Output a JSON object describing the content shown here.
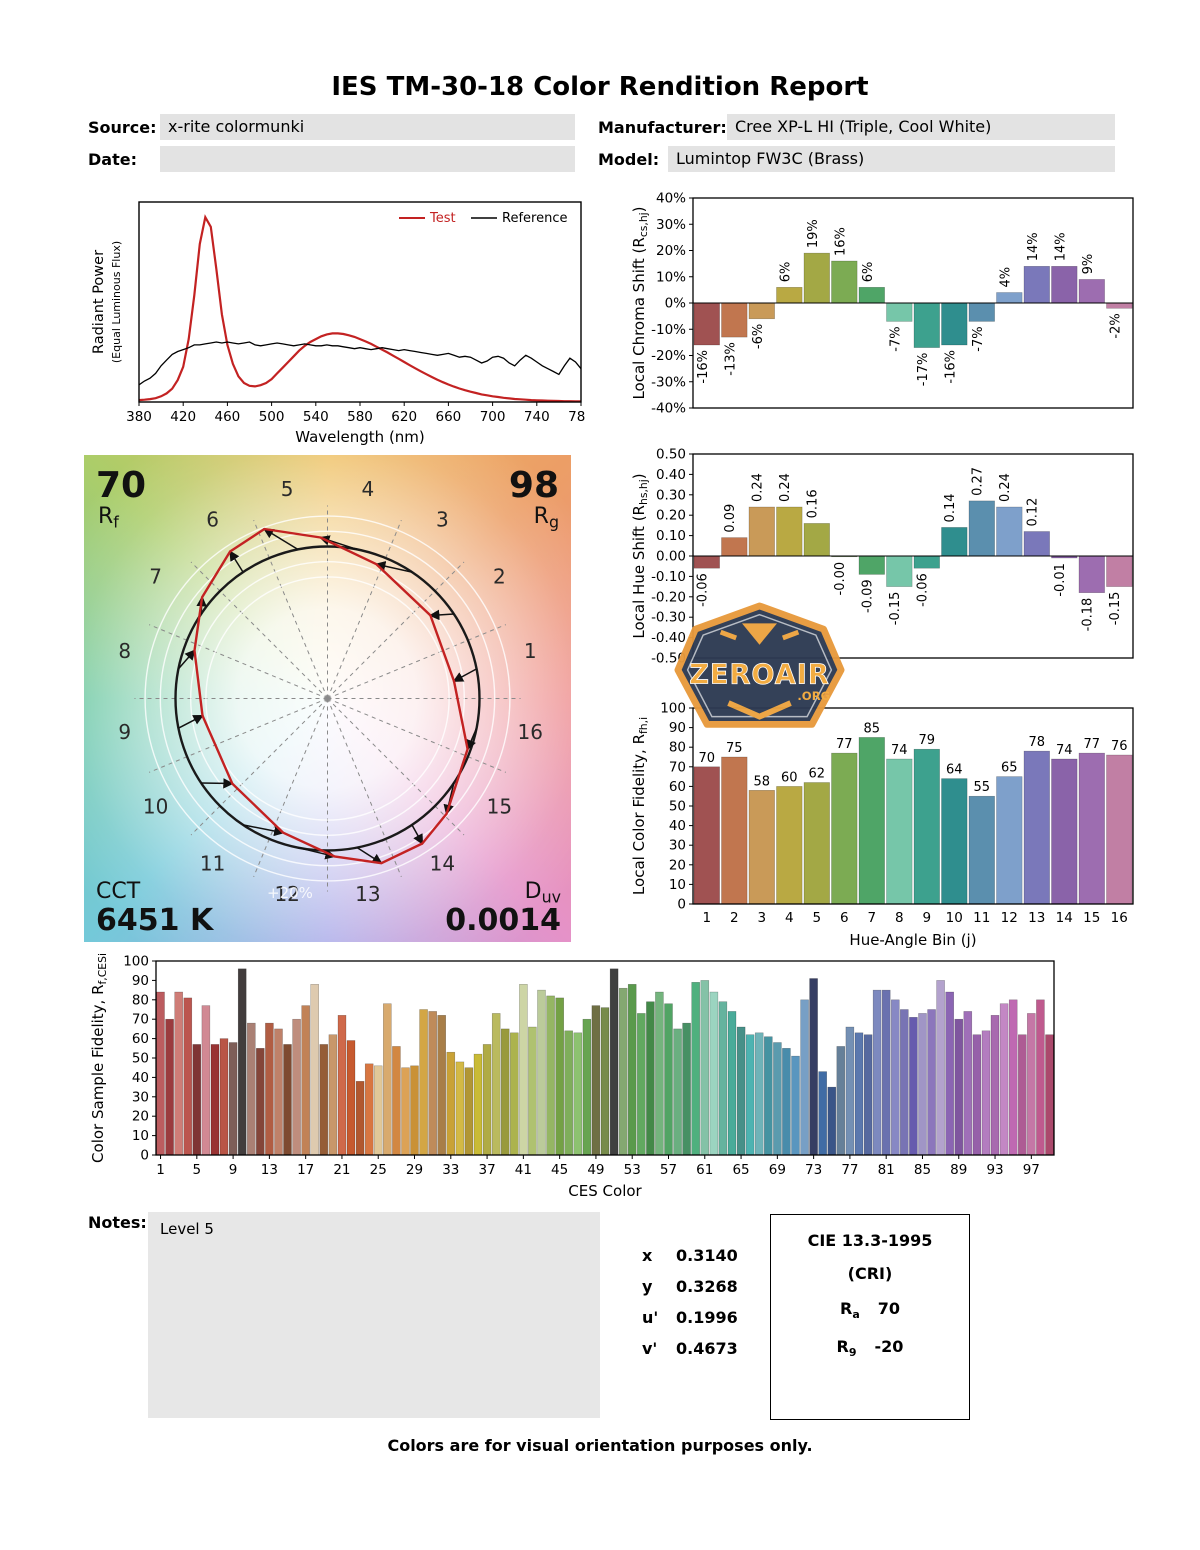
{
  "report": {
    "title": "IES TM-30-18 Color Rendition Report",
    "fields": {
      "source_label": "Source:",
      "source_value": "x-rite colormunki",
      "manufacturer_label": "Manufacturer:",
      "manufacturer_value": "Cree XP-L HI (Triple, Cool White)",
      "date_label": "Date:",
      "date_value": "",
      "model_label": "Model:",
      "model_value": "Lumintop FW3C (Brass)"
    },
    "notes_label": "Notes:",
    "notes_value": "Level 5",
    "footer": "Colors are for visual orientation purposes only."
  },
  "watermark": {
    "line1": "ZEROAIR",
    "line2": ".ORG"
  },
  "cvg": {
    "rf_value": "70",
    "rf_label": "R_[f]",
    "rg_value": "98",
    "rg_label": "R_[g]",
    "cct_label": "CCT",
    "cct_value": "6451 K",
    "duv_label": "D_[uv]",
    "duv_value": "0.0014",
    "ring_label": "+20%",
    "bins": [
      1,
      2,
      3,
      4,
      5,
      6,
      7,
      8,
      9,
      10,
      11,
      12,
      13,
      14,
      15,
      16
    ]
  },
  "chromaticity": {
    "rows": [
      {
        "label": "x",
        "value": "0.3140"
      },
      {
        "label": "y",
        "value": "0.3268"
      },
      {
        "label": "u'",
        "value": "0.1996"
      },
      {
        "label": "v'",
        "value": "0.4673"
      }
    ]
  },
  "cie": {
    "title": "CIE 13.3-1995",
    "subtitle": "(CRI)",
    "ra_main": "R",
    "ra_sub": "a",
    "ra_value": "70",
    "r9_main": "R",
    "r9_sub": "9",
    "r9_value": "-20"
  },
  "bin_colors": [
    "#a05252",
    "#c1764f",
    "#c99a58",
    "#b9a943",
    "#a3a845",
    "#7cab53",
    "#4fa567",
    "#76c6a9",
    "#3da18e",
    "#2f8e8e",
    "#5b8fae",
    "#7ea0cb",
    "#7a78ba",
    "#8a63a9",
    "#9d6db0",
    "#c17fa4"
  ],
  "chart_data": [
    {
      "id": "spd",
      "type": "line",
      "xlabel": "Wavelength (nm)",
      "ylabel_line1": "Radiant Power",
      "ylabel_line2": "(Equal Luminous Flux)",
      "xlim": [
        380,
        780
      ],
      "xticks": [
        380,
        420,
        460,
        500,
        540,
        580,
        620,
        660,
        700,
        740,
        780
      ],
      "legend_position": "top-right",
      "wavelength": {
        "start": 380,
        "step": 5,
        "count": 81
      },
      "series": [
        {
          "name": "Test",
          "color": "#c32222",
          "y": [
            0.01,
            0.012,
            0.015,
            0.02,
            0.03,
            0.045,
            0.07,
            0.115,
            0.185,
            0.33,
            0.56,
            0.83,
            0.97,
            0.92,
            0.7,
            0.46,
            0.3,
            0.2,
            0.135,
            0.1,
            0.085,
            0.082,
            0.088,
            0.1,
            0.12,
            0.15,
            0.18,
            0.21,
            0.24,
            0.27,
            0.295,
            0.315,
            0.33,
            0.345,
            0.355,
            0.36,
            0.36,
            0.357,
            0.35,
            0.342,
            0.33,
            0.318,
            0.305,
            0.29,
            0.275,
            0.26,
            0.243,
            0.227,
            0.21,
            0.193,
            0.177,
            0.161,
            0.146,
            0.131,
            0.117,
            0.104,
            0.092,
            0.081,
            0.071,
            0.062,
            0.054,
            0.047,
            0.04,
            0.035,
            0.03,
            0.026,
            0.022,
            0.019,
            0.016,
            0.014,
            0.012,
            0.01,
            0.009,
            0.008,
            0.007,
            0.006,
            0.005,
            0.004,
            0.004,
            0.003,
            0.003
          ]
        },
        {
          "name": "Reference",
          "color": "#000000",
          "y": [
            0.09,
            0.11,
            0.125,
            0.15,
            0.19,
            0.22,
            0.25,
            0.265,
            0.275,
            0.285,
            0.3,
            0.3,
            0.305,
            0.31,
            0.315,
            0.31,
            0.315,
            0.31,
            0.305,
            0.31,
            0.315,
            0.3,
            0.295,
            0.3,
            0.305,
            0.31,
            0.305,
            0.3,
            0.295,
            0.3,
            0.305,
            0.3,
            0.295,
            0.295,
            0.3,
            0.295,
            0.295,
            0.29,
            0.285,
            0.28,
            0.285,
            0.28,
            0.275,
            0.28,
            0.285,
            0.28,
            0.275,
            0.27,
            0.275,
            0.27,
            0.265,
            0.26,
            0.255,
            0.25,
            0.245,
            0.25,
            0.255,
            0.245,
            0.235,
            0.24,
            0.235,
            0.22,
            0.205,
            0.215,
            0.235,
            0.24,
            0.23,
            0.205,
            0.19,
            0.22,
            0.245,
            0.23,
            0.21,
            0.19,
            0.175,
            0.16,
            0.145,
            0.19,
            0.23,
            0.21,
            0.175
          ]
        }
      ]
    },
    {
      "id": "chroma_shift",
      "type": "bar",
      "ylabel": "Local Chroma Shift (R_[cs,hj])",
      "ylim": [
        -40,
        40
      ],
      "yticks": [
        40,
        30,
        20,
        10,
        0,
        -10,
        -20,
        -30,
        -40
      ],
      "ytick_labels": [
        "40%",
        "30%",
        "20%",
        "10%",
        "0%",
        "-10%",
        "-20%",
        "-30%",
        "-40%"
      ],
      "categories": [
        1,
        2,
        3,
        4,
        5,
        6,
        7,
        8,
        9,
        10,
        11,
        12,
        13,
        14,
        15,
        16
      ],
      "values": [
        -16,
        -13,
        -6,
        6,
        19,
        16,
        6,
        -7,
        -17,
        -16,
        -7,
        4,
        14,
        14,
        9,
        -2
      ],
      "value_labels": [
        "-16%",
        "-13%",
        "-6%",
        "6%",
        "19%",
        "16%",
        "6%",
        "-7%",
        "-17%",
        "-16%",
        "-7%",
        "4%",
        "14%",
        "14%",
        "9%",
        "-2%"
      ]
    },
    {
      "id": "hue_shift",
      "type": "bar",
      "ylabel": "Local Hue Shift (R_[hs,hj])",
      "ylim": [
        -0.5,
        0.5
      ],
      "yticks": [
        0.5,
        0.4,
        0.3,
        0.2,
        0.1,
        0,
        -0.1,
        -0.2,
        -0.3,
        -0.4,
        -0.5
      ],
      "ytick_labels": [
        "0.50",
        "0.40",
        "0.30",
        "0.20",
        "0.10",
        "0.00",
        "-0.10",
        "-0.20",
        "-0.30",
        "-0.40",
        "-0.50"
      ],
      "categories": [
        1,
        2,
        3,
        4,
        5,
        6,
        7,
        8,
        9,
        10,
        11,
        12,
        13,
        14,
        15,
        16
      ],
      "values": [
        -0.06,
        0.09,
        0.24,
        0.24,
        0.16,
        -0.004,
        -0.09,
        -0.15,
        -0.06,
        0.14,
        0.27,
        0.24,
        0.12,
        -0.01,
        -0.18,
        -0.15
      ],
      "value_labels": [
        "-0.06",
        "0.09",
        "0.24",
        "0.24",
        "0.16",
        "-0.00",
        "-0.09",
        "-0.15",
        "-0.06",
        "0.14",
        "0.27",
        "0.24",
        "0.12",
        "-0.01",
        "-0.18",
        "-0.15"
      ]
    },
    {
      "id": "local_fidelity",
      "type": "bar",
      "ylabel": "Local Color Fidelity, R_[fh,i]",
      "xlabel": "Hue-Angle Bin (j)",
      "ylim": [
        0,
        100
      ],
      "yticks": [
        100,
        90,
        80,
        70,
        60,
        50,
        40,
        30,
        20,
        10,
        0
      ],
      "ytick_labels": [
        "100",
        "90",
        "80",
        "70",
        "60",
        "50",
        "40",
        "30",
        "20",
        "10",
        "0"
      ],
      "categories": [
        1,
        2,
        3,
        4,
        5,
        6,
        7,
        8,
        9,
        10,
        11,
        12,
        13,
        14,
        15,
        16
      ],
      "values": [
        70,
        75,
        58,
        60,
        62,
        77,
        85,
        74,
        79,
        64,
        55,
        65,
        78,
        74,
        77,
        76
      ],
      "value_labels": [
        "70",
        "75",
        "58",
        "60",
        "62",
        "77",
        "85",
        "74",
        "79",
        "64",
        "55",
        "65",
        "78",
        "74",
        "77",
        "76"
      ]
    },
    {
      "id": "ces_fidelity",
      "type": "bar",
      "ylabel": "Color Sample Fidelity, R_[f,CESi]",
      "xlabel": "CES Color",
      "ylim": [
        0,
        100
      ],
      "yticks": [
        100,
        90,
        80,
        70,
        60,
        50,
        40,
        30,
        20,
        10,
        0
      ],
      "ytick_labels": [
        "100",
        "90",
        "80",
        "70",
        "60",
        "50",
        "40",
        "30",
        "20",
        "10",
        "0"
      ],
      "xticks": [
        1,
        5,
        9,
        13,
        17,
        21,
        25,
        29,
        33,
        37,
        41,
        45,
        49,
        53,
        57,
        61,
        65,
        69,
        73,
        77,
        81,
        85,
        89,
        93,
        97
      ],
      "values": [
        84,
        70,
        84,
        81,
        57,
        77,
        57,
        60,
        58,
        96,
        68,
        55,
        68,
        65,
        57,
        70,
        77,
        88,
        57,
        62,
        72,
        59,
        38,
        47,
        46,
        78,
        56,
        45,
        46,
        75,
        74,
        72,
        53,
        48,
        45,
        52,
        57,
        73,
        65,
        63,
        88,
        66,
        85,
        82,
        81,
        64,
        63,
        70,
        77,
        76,
        96,
        86,
        88,
        73,
        79,
        84,
        78,
        65,
        68,
        89,
        90,
        84,
        79,
        74,
        66,
        62,
        63,
        61,
        58,
        55,
        51,
        80,
        91,
        43,
        35,
        56,
        66,
        63,
        62,
        85,
        85,
        80,
        75,
        71,
        73,
        75,
        90,
        84,
        70,
        74,
        62,
        64,
        72,
        78,
        80,
        62,
        73,
        80,
        62
      ],
      "colors": [
        "hsl(358,42%,55%)",
        "hsl(358,45%,42%)",
        "hsl(4,48%,64%)",
        "hsl(4,45%,52%)",
        "hsl(0,42%,35%)",
        "hsl(352,44%,68%)",
        "hsl(0,50%,40%)",
        "hsl(8,45%,50%)",
        "hsl(10,18%,42%)",
        "hsl(0,4%,25%)",
        "hsl(14,24%,56%)",
        "hsl(10,40%,37%)",
        "hsl(14,45%,48%)",
        "hsl(17,40%,58%)",
        "hsl(20,45%,34%)",
        "hsl(14,34%,62%)",
        "hsl(24,46%,55%)",
        "hsl(34,42%,78%)",
        "hsl(24,46%,40%)",
        "hsl(29,46%,60%)",
        "hsl(14,58%,55%)",
        "hsl(17,62%,48%)",
        "hsl(19,58%,44%)",
        "hsl(21,66%,55%)",
        "hsl(39,55%,74%)",
        "hsl(34,58%,64%)",
        "hsl(29,62%,54%)",
        "hsl(34,66%,60%)",
        "hsl(37,58%,50%)",
        "hsl(41,62%,55%)",
        "hsl(29,44%,55%)",
        "hsl(34,40%,47%)",
        "hsl(44,58%,50%)",
        "hsl(49,62%,55%)",
        "hsl(47,54%,45%)",
        "hsl(54,58%,50%)",
        "hsl(57,44%,48%)",
        "hsl(60,40%,55%)",
        "hsl(61,44%,42%)",
        "hsl(64,40%,50%)",
        "hsl(69,36%,74%)",
        "hsl(74,40%,60%)",
        "hsl(79,32%,70%)",
        "hsl(84,36%,55%)",
        "hsl(89,40%,45%)",
        "hsl(94,34%,52%)",
        "hsl(99,40%,60%)",
        "hsl(104,34%,48%)",
        "hsl(60,24%,35%)",
        "hsl(79,30%,42%)",
        "hsl(0,0%,25%)",
        "hsl(99,24%,55%)",
        "hsl(109,34%,45%)",
        "hsl(119,30%,52%)",
        "hsl(124,34%,40%)",
        "hsl(129,30%,58%)",
        "hsl(134,34%,48%)",
        "hsl(139,30%,55%)",
        "hsl(144,34%,42%)",
        "hsl(149,38%,50%)",
        "hsl(154,34%,64%)",
        "hsl(159,40%,72%)",
        "hsl(164,34%,55%)",
        "hsl(169,40%,48%)",
        "hsl(174,34%,42%)",
        "hsl(179,40%,50%)",
        "hsl(184,34%,58%)",
        "hsl(189,40%,45%)",
        "hsl(194,34%,52%)",
        "hsl(199,40%,48%)",
        "hsl(204,44%,55%)",
        "hsl(209,40%,62%)",
        "hsl(229,30%,30%)",
        "hsl(214,44%,45%)",
        "hsl(219,40%,38%)",
        "hsl(209,20%,50%)",
        "hsl(214,30%,58%)",
        "hsl(219,34%,52%)",
        "hsl(224,30%,48%)",
        "hsl(229,34%,62%)",
        "hsl(234,30%,55%)",
        "hsl(239,34%,65%)",
        "hsl(244,30%,58%)",
        "hsl(249,34%,52%)",
        "hsl(254,30%,68%)",
        "hsl(259,34%,60%)",
        "hsl(264,30%,72%)",
        "hsl(269,34%,55%)",
        "hsl(274,30%,48%)",
        "hsl(279,34%,58%)",
        "hsl(284,30%,52%)",
        "hsl(289,34%,62%)",
        "hsl(294,30%,55%)",
        "hsl(299,34%,65%)",
        "hsl(309,40%,58%)",
        "hsl(319,34%,52%)",
        "hsl(324,40%,62%)",
        "hsl(329,44%,55%)",
        "hsl(339,40%,48%)"
      ]
    }
  ]
}
